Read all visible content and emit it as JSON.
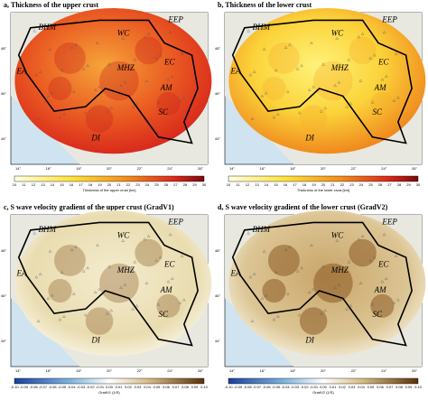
{
  "panels": [
    {
      "title": "a, Thickness of the upper crust",
      "colorbar_label": "Thickness of the upper crust [km]",
      "colorbar_ticks": [
        "10",
        "11",
        "12",
        "13",
        "14",
        "15",
        "16",
        "17",
        "18",
        "19",
        "20",
        "21",
        "22",
        "23",
        "24",
        "25",
        "26",
        "27",
        "28",
        "29",
        "30"
      ],
      "regions": [
        "BHM",
        "WC",
        "EEP",
        "EC",
        "EA",
        "MHZ",
        "AM",
        "SC",
        "DI"
      ]
    },
    {
      "title": "b, Thickness of the lower crust",
      "colorbar_label": "Thickness of the lower crust [km]",
      "colorbar_ticks": [
        "10",
        "11",
        "12",
        "13",
        "14",
        "15",
        "16",
        "17",
        "18",
        "19",
        "20",
        "21",
        "22",
        "23",
        "24",
        "25",
        "26",
        "27",
        "28",
        "29",
        "30"
      ],
      "regions": [
        "BHM",
        "WC",
        "EEP",
        "EC",
        "EA",
        "MHZ",
        "AM",
        "SC",
        "DI"
      ]
    },
    {
      "title": "c, S wave velocity gradient  of the upper crust (GradV1)",
      "colorbar_label": "GradV1 (1/S)",
      "colorbar_ticks": [
        "-0.10",
        "-0.09",
        "-0.08",
        "-0.07",
        "-0.06",
        "-0.05",
        "-0.04",
        "-0.03",
        "-0.02",
        "-0.01",
        "0.00",
        "0.01",
        "0.02",
        "0.03",
        "0.04",
        "0.05",
        "0.06",
        "0.07",
        "0.08",
        "0.09",
        "0.10"
      ],
      "regions": [
        "BHM",
        "WC",
        "EEP",
        "EC",
        "EA",
        "MHZ",
        "AM",
        "SC",
        "DI"
      ]
    },
    {
      "title": "d, S wave velocity gradient of the lower crust (GradV2)",
      "colorbar_label": "GradV2 (1/S)",
      "colorbar_ticks": [
        "-0.10",
        "-0.09",
        "-0.08",
        "-0.07",
        "-0.06",
        "-0.05",
        "-0.04",
        "-0.03",
        "-0.02",
        "-0.01",
        "0.00",
        "0.01",
        "0.02",
        "0.03",
        "0.04",
        "0.05",
        "0.06",
        "0.07",
        "0.08",
        "0.09",
        "0.10"
      ],
      "regions": [
        "BHM",
        "WC",
        "EEP",
        "EC",
        "EA",
        "MHZ",
        "AM",
        "SC",
        "DI"
      ]
    }
  ],
  "x_ticks": [
    "14°",
    "16°",
    "18°",
    "20°",
    "22°",
    "24°",
    "26°"
  ],
  "y_ticks": [
    "48°",
    "46°",
    "44°"
  ]
}
